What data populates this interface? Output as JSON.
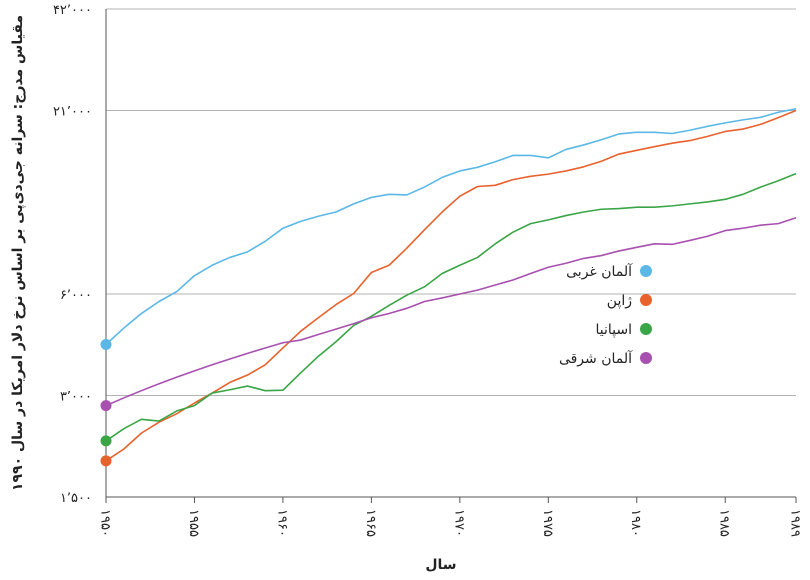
{
  "chart_data": {
    "type": "line",
    "xlabel": "سال",
    "ylabel": "مقیاس مدرج: سرانه جی‌دی‌پی بر اساس نرخ دلار امریکا در سال ۱۹۹۰",
    "y_scale": "log",
    "ylim": [
      1500,
      42000
    ],
    "xlim": [
      1950,
      1989
    ],
    "y_ticks": [
      {
        "value": 1500,
        "label": "۱٬۵۰۰"
      },
      {
        "value": 3000,
        "label": "۳٬۰۰۰"
      },
      {
        "value": 6000,
        "label": "۶٬۰۰۰"
      },
      {
        "value": 21000,
        "label": "۲۱٬۰۰۰"
      },
      {
        "value": 42000,
        "label": "۴۲٬۰۰۰"
      }
    ],
    "x_ticks": [
      {
        "value": 1950,
        "label": "۱۹۵۰"
      },
      {
        "value": 1955,
        "label": "۱۹۵۵"
      },
      {
        "value": 1960,
        "label": "۱۹۶۰"
      },
      {
        "value": 1965,
        "label": "۱۹۶۵"
      },
      {
        "value": 1970,
        "label": "۱۹۷۰"
      },
      {
        "value": 1975,
        "label": "۱۹۷۵"
      },
      {
        "value": 1980,
        "label": "۱۹۸۰"
      },
      {
        "value": 1985,
        "label": "۱۹۸۵"
      },
      {
        "value": 1989,
        "label": "۱۹۸۹"
      }
    ],
    "grid": "horizontal",
    "legend_position": "right",
    "x": [
      1950,
      1951,
      1952,
      1953,
      1954,
      1955,
      1956,
      1957,
      1958,
      1959,
      1960,
      1961,
      1962,
      1963,
      1964,
      1965,
      1966,
      1967,
      1968,
      1969,
      1970,
      1971,
      1972,
      1973,
      1974,
      1975,
      1976,
      1977,
      1978,
      1979,
      1980,
      1981,
      1982,
      1983,
      1984,
      1985,
      1986,
      1987,
      1988,
      1989
    ],
    "series": [
      {
        "name": "آلمان غربی",
        "color": "#5bb8e6",
        "values": [
          4250,
          4750,
          5250,
          5700,
          6100,
          6800,
          7300,
          7700,
          8000,
          8600,
          9400,
          9850,
          10200,
          10500,
          11100,
          11600,
          11850,
          11800,
          12450,
          13300,
          13900,
          14250,
          14800,
          15450,
          15450,
          15200,
          16100,
          16600,
          17200,
          17900,
          18100,
          18100,
          17950,
          18350,
          18850,
          19300,
          19700,
          20050,
          20750,
          21250
        ]
      },
      {
        "name": "ژاپن",
        "color": "#e8622d",
        "values": [
          1920,
          2080,
          2320,
          2500,
          2650,
          2850,
          3050,
          3280,
          3450,
          3700,
          4150,
          4650,
          5100,
          5580,
          6020,
          6950,
          7300,
          8200,
          9300,
          10500,
          11700,
          12500,
          12600,
          13100,
          13400,
          13600,
          13900,
          14300,
          14850,
          15600,
          16000,
          16400,
          16800,
          17100,
          17600,
          18200,
          18500,
          19100,
          20000,
          21000
        ]
      },
      {
        "name": "اسپانیا",
        "color": "#3aa546",
        "values": [
          2200,
          2390,
          2550,
          2520,
          2700,
          2800,
          3050,
          3120,
          3200,
          3100,
          3110,
          3500,
          3920,
          4330,
          4840,
          5150,
          5550,
          5950,
          6300,
          6900,
          7300,
          7700,
          8450,
          9150,
          9700,
          9950,
          10250,
          10500,
          10700,
          10750,
          10850,
          10850,
          10950,
          11100,
          11250,
          11450,
          11850,
          12450,
          13000,
          13650
        ]
      },
      {
        "name": "آلمان شرقی",
        "color": "#a850b0",
        "values": [
          2800,
          2950,
          3100,
          3250,
          3400,
          3550,
          3700,
          3850,
          4000,
          4150,
          4300,
          4380,
          4550,
          4720,
          4900,
          5100,
          5250,
          5440,
          5700,
          5840,
          6000,
          6160,
          6380,
          6600,
          6900,
          7200,
          7400,
          7650,
          7800,
          8050,
          8250,
          8450,
          8420,
          8650,
          8900,
          9250,
          9400,
          9600,
          9700,
          10100
        ]
      }
    ]
  }
}
